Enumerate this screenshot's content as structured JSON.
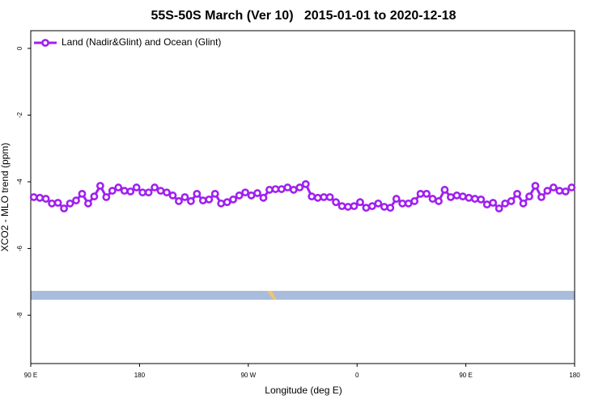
{
  "chart_data": {
    "type": "line",
    "title": "55S-50S March (Ver 10)   2015-01-01 to 2020-12-18",
    "x_label": "Longitude (deg E)",
    "y_label": "XCO2 - MLO trend (ppm)",
    "xlim": [
      90,
      540
    ],
    "xticks": [
      {
        "value": 90,
        "label": "90 E"
      },
      {
        "value": 180,
        "label": "180"
      },
      {
        "value": 270,
        "label": "90 W"
      },
      {
        "value": 360,
        "label": "0"
      },
      {
        "value": 450,
        "label": "90 E"
      },
      {
        "value": 540,
        "label": "180"
      }
    ],
    "ylim": [
      -9.45,
      0.53
    ],
    "yticks": [
      0,
      -2,
      -4,
      -6,
      -8
    ],
    "legend": "top-left",
    "x": [
      92.5,
      97.5,
      102.5,
      107.5,
      112.5,
      117.5,
      122.5,
      127.5,
      132.5,
      137.5,
      142.5,
      147.5,
      152.5,
      157.5,
      162.5,
      167.5,
      172.5,
      177.5,
      182.5,
      187.5,
      192.5,
      197.5,
      202.5,
      207.5,
      212.5,
      217.5,
      222.5,
      227.5,
      232.5,
      237.5,
      242.5,
      247.5,
      252.5,
      257.5,
      262.5,
      267.5,
      272.5,
      277.5,
      282.5,
      287.5,
      292.5,
      297.5,
      302.5,
      307.5,
      312.5,
      317.5,
      322.5,
      327.5,
      332.5,
      337.5,
      342.5,
      347.5,
      352.5,
      357.5,
      362.5,
      367.5,
      372.5,
      377.5,
      382.5,
      387.5,
      392.5,
      397.5,
      402.5,
      407.5,
      412.5,
      417.5,
      422.5,
      427.5,
      432.5,
      437.5,
      442.5,
      447.5,
      452.5,
      457.5,
      462.5,
      467.5,
      472.5,
      477.5,
      482.5,
      487.5,
      492.5,
      497.5,
      502.5,
      507.5,
      512.5,
      517.5,
      522.5,
      527.5,
      532.5,
      537.5
    ],
    "series": [
      {
        "name": "Land (Nadir&Glint) and Ocean (Glint)",
        "color": "#a020f0",
        "values": [
          -4.46,
          -4.48,
          -4.51,
          -4.65,
          -4.63,
          -4.8,
          -4.65,
          -4.56,
          -4.36,
          -4.65,
          -4.44,
          -4.12,
          -4.46,
          -4.27,
          -4.17,
          -4.27,
          -4.29,
          -4.17,
          -4.32,
          -4.32,
          -4.17,
          -4.27,
          -4.32,
          -4.41,
          -4.58,
          -4.46,
          -4.58,
          -4.36,
          -4.56,
          -4.53,
          -4.36,
          -4.65,
          -4.61,
          -4.53,
          -4.41,
          -4.32,
          -4.41,
          -4.34,
          -4.48,
          -4.24,
          -4.22,
          -4.22,
          -4.17,
          -4.24,
          -4.17,
          -4.07,
          -4.44,
          -4.48,
          -4.46,
          -4.46,
          -4.61,
          -4.73,
          -4.75,
          -4.73,
          -4.61,
          -4.78,
          -4.73,
          -4.65,
          -4.75,
          -4.78,
          -4.51,
          -4.65,
          -4.65,
          -4.58,
          -4.36,
          -4.36,
          -4.51,
          -4.58,
          -4.24,
          -4.46,
          -4.41,
          -4.44,
          -4.48,
          -4.51,
          -4.53,
          -4.68,
          -4.63,
          -4.8,
          -4.65,
          -4.58,
          -4.36,
          -4.65,
          -4.44,
          -4.12,
          -4.46,
          -4.27,
          -4.17,
          -4.27,
          -4.29,
          -4.17
        ]
      }
    ]
  }
}
